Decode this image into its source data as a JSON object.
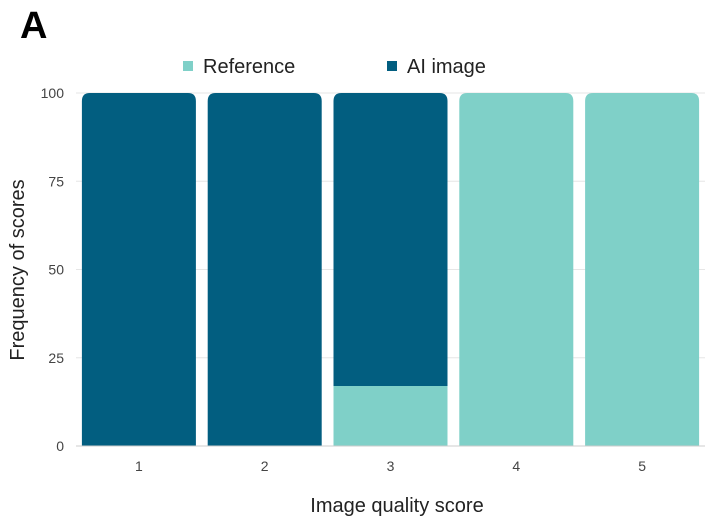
{
  "panel_label": "A",
  "chart_data": {
    "type": "bar",
    "stacked": true,
    "categories": [
      "1",
      "2",
      "3",
      "4",
      "5"
    ],
    "series": [
      {
        "name": "Reference",
        "color": "#7fd0c8",
        "values": [
          0,
          0,
          17,
          100,
          100
        ]
      },
      {
        "name": "AI image",
        "color": "#025e80",
        "values": [
          100,
          100,
          83,
          0,
          0
        ]
      }
    ],
    "xlabel": "Image quality score",
    "ylabel": "Frequency of scores",
    "ylim": [
      0,
      100
    ],
    "yticks": [
      "0",
      "25",
      "50",
      "75",
      "100"
    ],
    "grid": true,
    "legend_position": "top"
  }
}
